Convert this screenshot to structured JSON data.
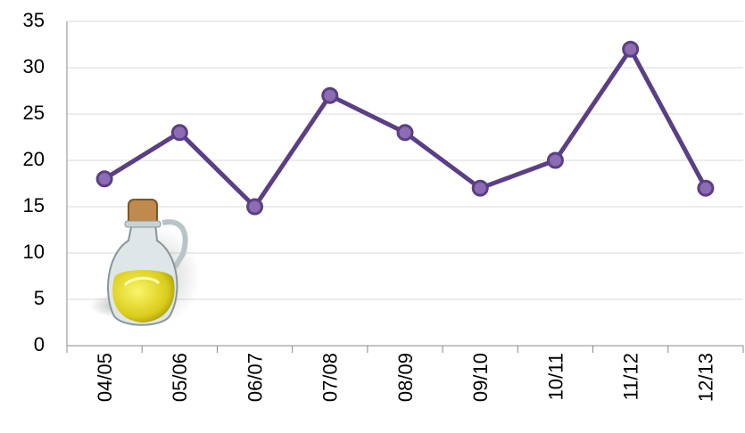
{
  "chart_data": {
    "type": "line",
    "categories": [
      "04/05",
      "05/06",
      "06/07",
      "07/08",
      "08/09",
      "09/10",
      "10/11",
      "11/12",
      "12/13"
    ],
    "values": [
      18,
      23,
      15,
      27,
      23,
      17,
      20,
      32,
      17
    ],
    "color": "#5b3f84",
    "marker_color": "#8c6db3",
    "ylim": [
      0,
      35
    ],
    "yticks": [
      0,
      5,
      10,
      15,
      20,
      25,
      30,
      35
    ],
    "grid": true
  }
}
